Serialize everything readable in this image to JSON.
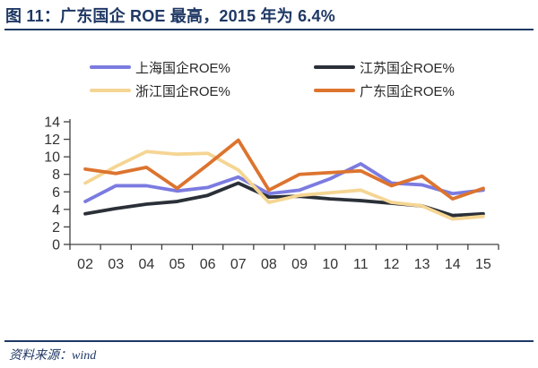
{
  "header": {
    "title": "图 11：广东国企 ROE 最高，2015 年为 6.4%"
  },
  "footer": {
    "source_label": "资料来源：wind"
  },
  "colors": {
    "navy_accent": "#1F3864",
    "axis_line": "#404040",
    "tick_label": "#333333",
    "background": "#FFFFFF"
  },
  "chart_data": {
    "type": "line",
    "title": "图 11：广东国企 ROE 最高，2015 年为 6.4%",
    "xlabel": "",
    "ylabel": "",
    "categories": [
      "02",
      "03",
      "04",
      "05",
      "06",
      "07",
      "08",
      "09",
      "10",
      "11",
      "12",
      "13",
      "14",
      "15"
    ],
    "series": [
      {
        "name": "上海国企ROE%",
        "color": "#7B7BE0",
        "values": [
          4.9,
          6.7,
          6.7,
          6.1,
          6.5,
          7.7,
          5.8,
          6.2,
          7.5,
          9.2,
          7.0,
          6.8,
          5.8,
          6.2
        ]
      },
      {
        "name": "江苏国企ROE%",
        "color": "#2B3038",
        "values": [
          3.5,
          4.1,
          4.6,
          4.9,
          5.6,
          7.0,
          5.4,
          5.5,
          5.2,
          5.0,
          4.7,
          4.4,
          3.3,
          3.5
        ]
      },
      {
        "name": "浙江国企ROE%",
        "color": "#F5D593",
        "values": [
          7.0,
          8.9,
          10.6,
          10.3,
          10.4,
          8.5,
          4.8,
          5.6,
          5.9,
          6.2,
          4.8,
          4.4,
          2.9,
          3.2
        ]
      },
      {
        "name": "广东国企ROE%",
        "color": "#DC742F",
        "values": [
          8.6,
          8.1,
          8.8,
          6.4,
          9.1,
          11.9,
          6.2,
          8.0,
          8.2,
          8.4,
          6.7,
          7.8,
          5.2,
          6.4
        ]
      }
    ],
    "ylim": [
      0,
      14
    ],
    "ytick_step": 2,
    "yticks": [
      0,
      2,
      4,
      6,
      8,
      10,
      12,
      14
    ],
    "grid": false,
    "legend_position": "top"
  }
}
